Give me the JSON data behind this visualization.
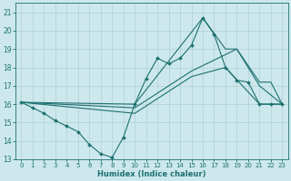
{
  "xlabel": "Humidex (Indice chaleur)",
  "xlim": [
    -0.5,
    23.5
  ],
  "ylim": [
    13,
    21.5
  ],
  "yticks": [
    13,
    14,
    15,
    16,
    17,
    18,
    19,
    20,
    21
  ],
  "xticks": [
    0,
    1,
    2,
    3,
    4,
    5,
    6,
    7,
    8,
    9,
    10,
    11,
    12,
    13,
    14,
    15,
    16,
    17,
    18,
    19,
    20,
    21,
    22,
    23
  ],
  "bg_color": "#cce8ec",
  "line_color": "#1e7070",
  "grid_color": "#b0d0d4",
  "lines": [
    {
      "x": [
        0,
        1,
        2,
        3,
        4,
        5,
        6,
        7,
        8,
        9,
        10,
        11,
        12,
        13,
        14,
        15,
        16,
        17,
        18,
        19,
        20,
        21,
        22,
        23
      ],
      "y": [
        16.1,
        15.8,
        15.5,
        15.1,
        14.8,
        14.5,
        13.8,
        13.3,
        13.1,
        14.2,
        16.0,
        17.4,
        18.5,
        18.2,
        18.5,
        19.2,
        20.7,
        19.8,
        18.0,
        17.3,
        17.2,
        16.0,
        16.0,
        16.0
      ],
      "marker": "D",
      "markersize": 2.0
    },
    {
      "x": [
        0,
        10,
        16,
        18,
        19,
        21,
        22,
        23
      ],
      "y": [
        16.1,
        16.0,
        20.7,
        19.0,
        19.0,
        17.2,
        17.2,
        16.0
      ],
      "marker": null
    },
    {
      "x": [
        0,
        10,
        15,
        18,
        21,
        23
      ],
      "y": [
        16.1,
        15.5,
        17.5,
        18.0,
        16.0,
        16.0
      ],
      "marker": null
    },
    {
      "x": [
        0,
        10,
        15,
        19,
        21,
        23
      ],
      "y": [
        16.1,
        15.8,
        17.8,
        19.0,
        17.0,
        16.0
      ],
      "marker": null
    }
  ]
}
